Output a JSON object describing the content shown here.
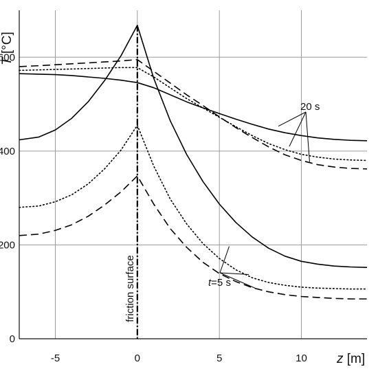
{
  "chart_data": {
    "type": "line",
    "xlabel": "z [m]",
    "ylabel": "T [°C]",
    "xlim": [
      -7.2,
      14
    ],
    "ylim": [
      0,
      700
    ],
    "xticks": [
      -5,
      0,
      5,
      10
    ],
    "yticks": [
      0,
      200,
      400,
      600
    ],
    "grid": true,
    "annotations": {
      "friction_surface": "friction surface",
      "t_label_italic": "t",
      "t_label_rest": "=5 s",
      "label_20s": "20 s"
    },
    "series": [
      {
        "time": "5 s",
        "style": "solid",
        "x": [
          -7.2,
          -6,
          -5,
          -4,
          -3,
          -2,
          -1,
          0,
          1,
          2,
          3,
          4,
          5,
          6,
          7,
          8,
          9,
          10,
          11,
          12,
          13,
          14
        ],
        "y": [
          424,
          430,
          445,
          470,
          505,
          550,
          603,
          668,
          555,
          465,
          393,
          335,
          287,
          248,
          217,
          193,
          176,
          165,
          159,
          155,
          153,
          152
        ]
      },
      {
        "time": "5 s",
        "style": "dotted",
        "x": [
          -7.2,
          -6,
          -5,
          -4,
          -3,
          -2,
          -1,
          0,
          1,
          2,
          3,
          4,
          5,
          6,
          7,
          8,
          9,
          10,
          11,
          12,
          13,
          14
        ],
        "y": [
          280,
          283,
          292,
          307,
          330,
          362,
          402,
          455,
          368,
          298,
          245,
          203,
          171,
          147,
          130,
          120,
          114,
          110,
          108,
          107,
          106,
          106
        ]
      },
      {
        "time": "5 s",
        "style": "dashed",
        "x": [
          -7.2,
          -6,
          -5,
          -4,
          -3,
          -2,
          -1,
          0,
          1,
          2,
          3,
          4,
          5,
          6,
          7,
          8,
          9,
          10,
          11,
          12,
          13,
          14
        ],
        "y": [
          220,
          223,
          231,
          243,
          261,
          285,
          313,
          347,
          287,
          235,
          195,
          163,
          139,
          122,
          109,
          100,
          94,
          90,
          88,
          86,
          85,
          85
        ]
      },
      {
        "time": "20 s",
        "style": "solid",
        "x": [
          -7.2,
          -6,
          -5,
          -4,
          -3,
          -2,
          -1,
          0,
          1,
          2,
          3,
          4,
          5,
          6,
          7,
          8,
          9,
          10,
          11,
          12,
          13,
          14
        ],
        "y": [
          565,
          564,
          563,
          561,
          558,
          555,
          551,
          546,
          535,
          520,
          505,
          492,
          480,
          468,
          457,
          447,
          439,
          433,
          428,
          425,
          423,
          422
        ]
      },
      {
        "time": "20 s",
        "style": "dotted",
        "x": [
          -7.2,
          -6,
          -5,
          -4,
          -3,
          -2,
          -1,
          0,
          1,
          2,
          3,
          4,
          5,
          6,
          7,
          8,
          9,
          10,
          11,
          12,
          13,
          14
        ],
        "y": [
          572,
          573,
          574,
          575,
          576,
          577,
          578,
          578,
          558,
          535,
          512,
          492,
          472,
          452,
          433,
          416,
          403,
          393,
          387,
          383,
          381,
          380
        ]
      },
      {
        "time": "20 s",
        "style": "dashed",
        "x": [
          -7.2,
          -6,
          -5,
          -4,
          -3,
          -2,
          -1,
          0,
          1,
          2,
          3,
          4,
          5,
          6,
          7,
          8,
          9,
          10,
          11,
          12,
          13,
          14
        ],
        "y": [
          580,
          582,
          584,
          586,
          588,
          590,
          592,
          595,
          570,
          545,
          520,
          497,
          473,
          450,
          429,
          409,
          392,
          380,
          371,
          366,
          363,
          362
        ]
      }
    ]
  }
}
